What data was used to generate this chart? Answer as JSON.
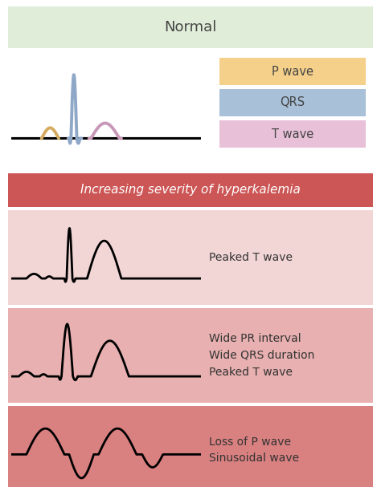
{
  "title_normal": "Normal",
  "title_hyperkalemia": "Increasing severity of hyperkalemia",
  "bg_color": "#f5f5f5",
  "normal_bg": "#e4eed e",
  "hyperkalemia_header_bg": "#cc5555",
  "row1_bg": "#f2d5d5",
  "row2_bg": "#e8b0b0",
  "row3_bg": "#d98080",
  "legend_p_color": "#f5d08a",
  "legend_qrs_color": "#a8c0d8",
  "legend_t_color": "#e8c0d8",
  "ecg_normal_p_color": "#d4ac60",
  "ecg_normal_qrs_color": "#90a8c8",
  "ecg_normal_t_color": "#c898b8",
  "label_peaked_t": "Peaked T wave",
  "label_wide_pr": "Wide PR interval\nWide QRS duration\nPeaked T wave",
  "label_sinusoidal": "Loss of P wave\nSinusoidal wave",
  "header_text_color": "#ffffff",
  "normal_title_color": "#444444",
  "body_text_color": "#333333",
  "normal_bg_color": "#e0edd8"
}
